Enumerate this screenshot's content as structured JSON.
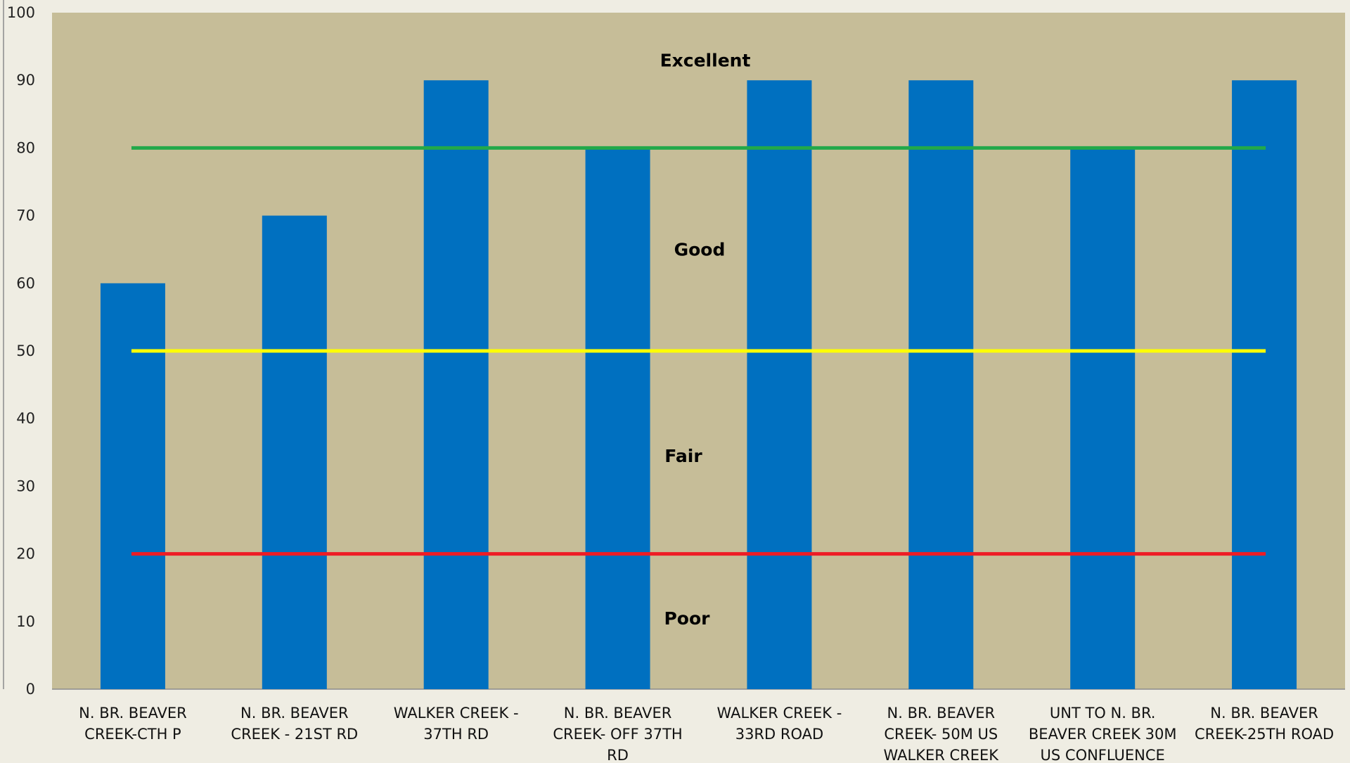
{
  "chart_data": {
    "type": "bar",
    "title": "",
    "xlabel": "",
    "ylabel": "",
    "ylim": [
      0,
      100
    ],
    "yticks": [
      0,
      10,
      20,
      30,
      40,
      50,
      60,
      70,
      80,
      90,
      100
    ],
    "grid": false,
    "legend": "none",
    "categories": [
      [
        "N. BR. BEAVER",
        "CREEK-CTH P"
      ],
      [
        "N. BR. BEAVER",
        "CREEK - 21ST RD"
      ],
      [
        "WALKER CREEK -",
        "37TH RD"
      ],
      [
        "N. BR. BEAVER",
        "CREEK- OFF 37TH",
        "RD"
      ],
      [
        "WALKER CREEK -",
        "33RD ROAD"
      ],
      [
        "N. BR. BEAVER",
        "CREEK- 50M US",
        "WALKER CREEK"
      ],
      [
        "UNT TO N. BR.",
        "BEAVER CREEK 30M",
        "US CONFLUENCE"
      ],
      [
        "N. BR. BEAVER",
        "CREEK-25TH ROAD"
      ]
    ],
    "values": [
      60,
      70,
      90,
      80,
      90,
      90,
      80,
      90
    ],
    "thresholds": [
      {
        "value": 80,
        "color": "#22a94a"
      },
      {
        "value": 50,
        "color": "#ffff00"
      },
      {
        "value": 20,
        "color": "#ee1c25"
      }
    ],
    "bands": [
      {
        "label": "Excellent",
        "value": 93
      },
      {
        "label": "Good",
        "value": 65
      },
      {
        "label": "Fair",
        "value": 34.5
      },
      {
        "label": "Poor",
        "value": 10.5
      }
    ],
    "colors": {
      "bar": "#0070c0",
      "plot_background": "#c6bd98",
      "page_background": "#efede3",
      "axis": "#8c8c8c"
    }
  }
}
